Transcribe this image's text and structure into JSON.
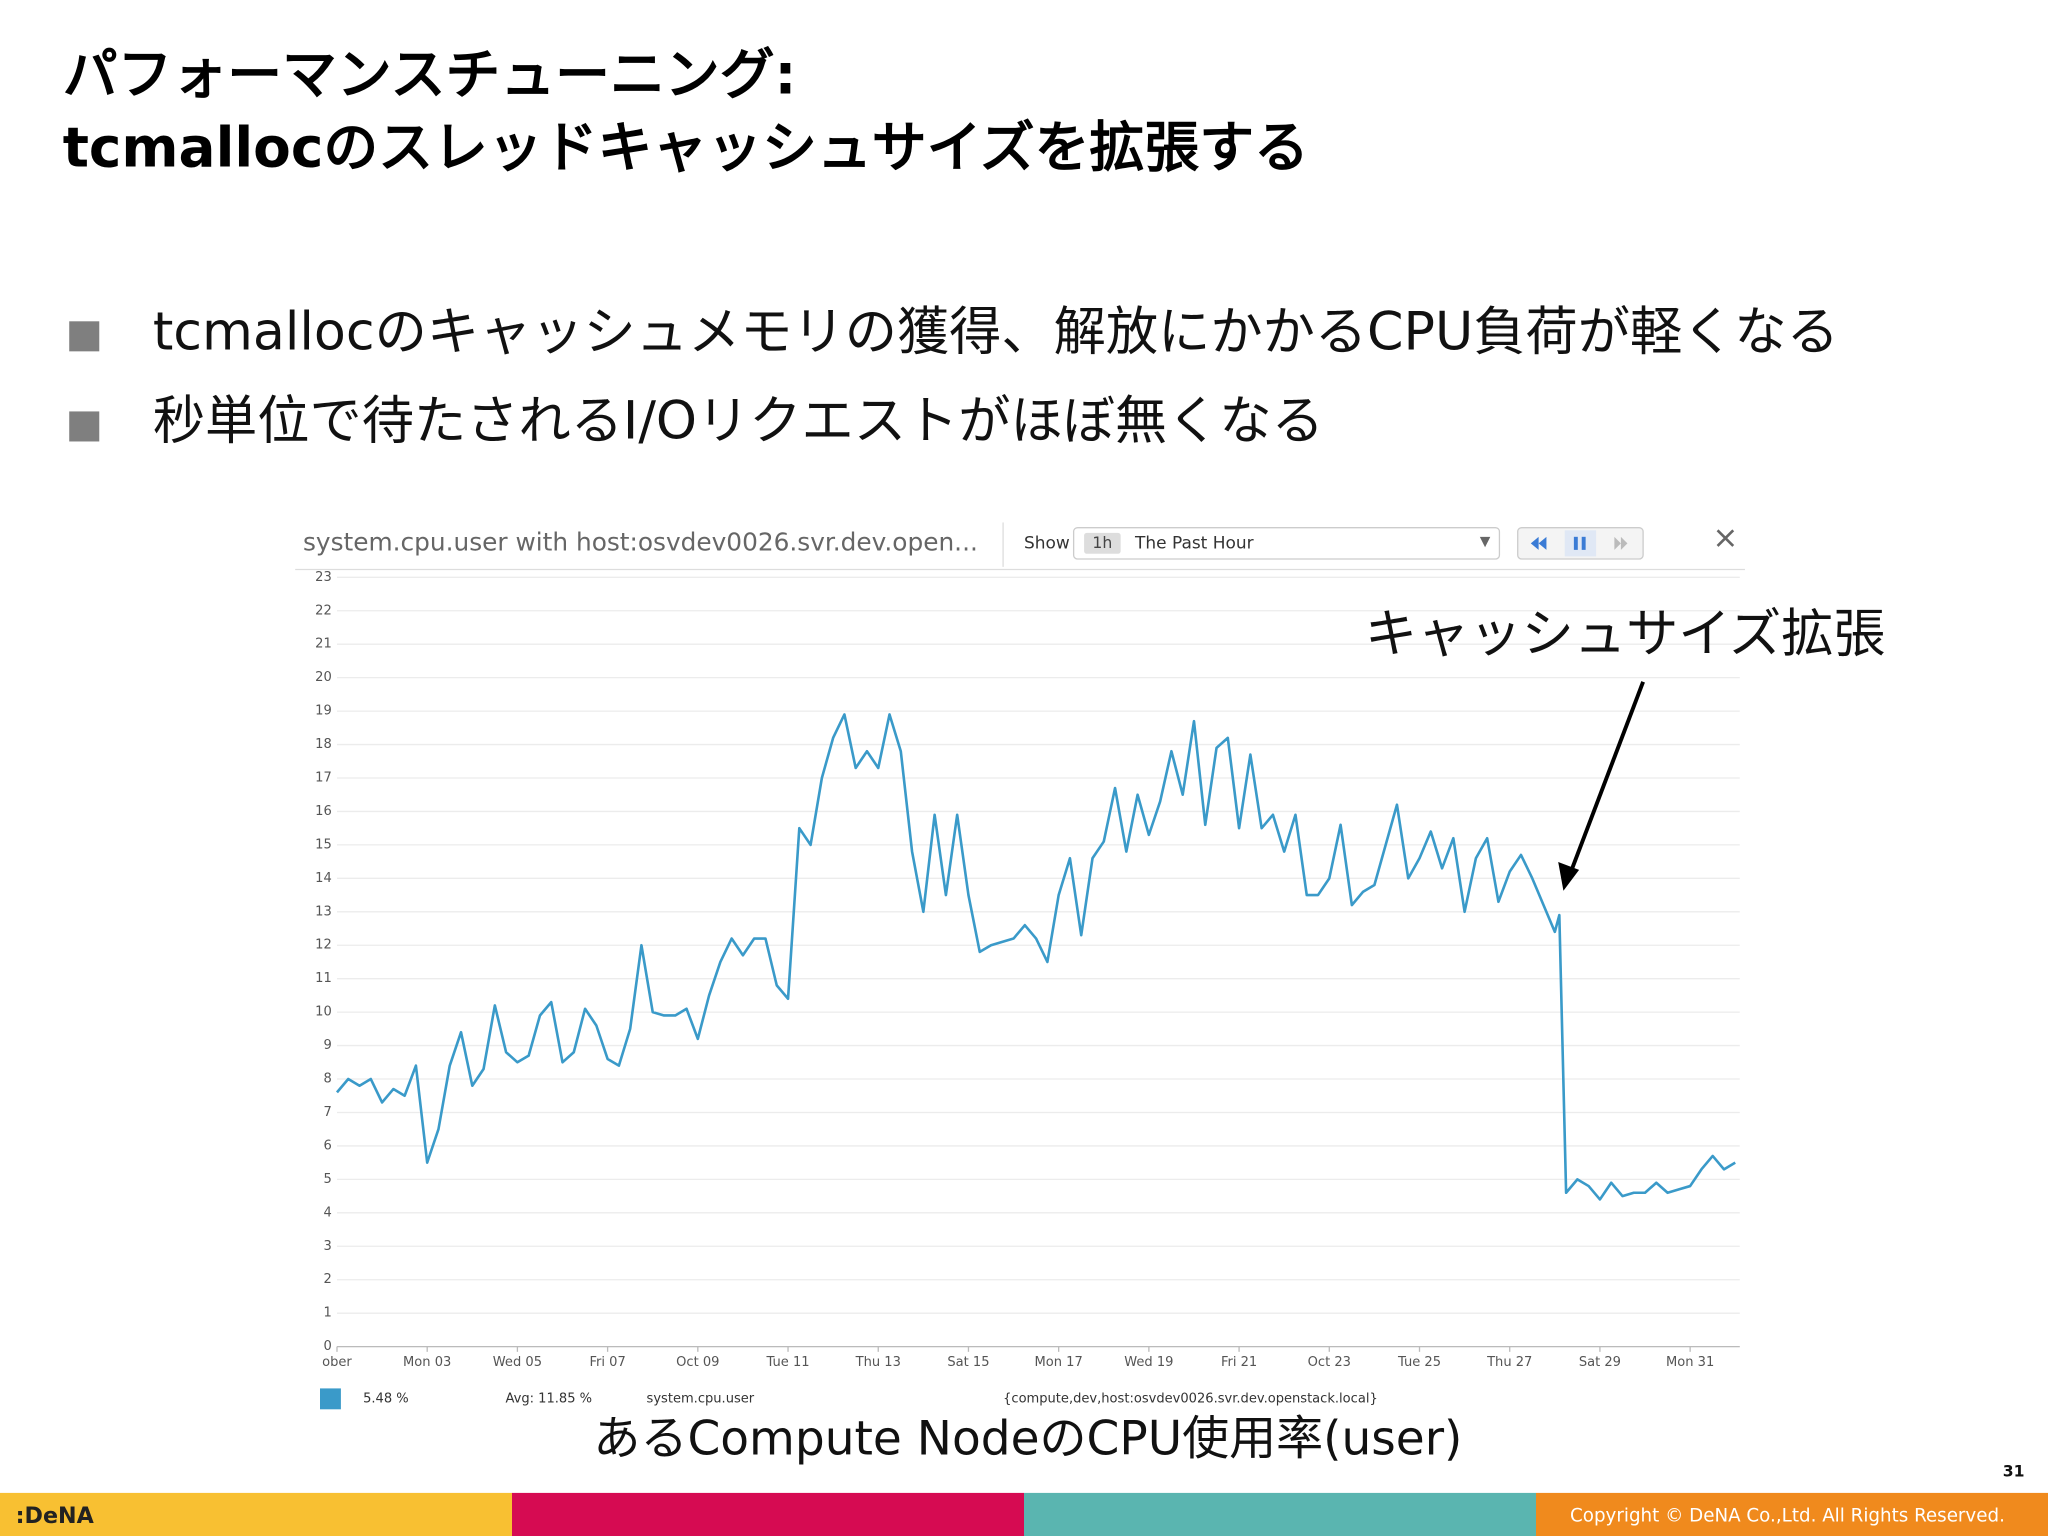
{
  "slide": {
    "title": [
      "パフォーマンスチューニング:",
      "tcmallocのスレッドキャッシュサイズを拡張する"
    ],
    "bullets": [
      "tcmallocのキャッシュメモリの獲得、解放にかかるCPU負荷が軽くなる",
      "秒単位で待たされるI/Oリクエストがほぼ無くなる"
    ],
    "annotation": "キャッシュサイズ拡張",
    "caption": "あるCompute NodeのCPU使用率(user)",
    "page_number": "31",
    "footer": {
      "logo": ":DeNA",
      "copyright": "Copyright © DeNA Co.,Ltd. All Rights Reserved."
    }
  },
  "chart_data": {
    "type": "line",
    "title": "system.cpu.user with host:osvdev0026.svr.dev.open...",
    "controls": {
      "show_label": "Show",
      "range_short": "1h",
      "range": "The Past Hour"
    },
    "x": [
      1.0,
      1.25,
      1.5,
      1.75,
      2.0,
      2.25,
      2.5,
      2.75,
      3.0,
      3.25,
      3.5,
      3.75,
      4.0,
      4.25,
      4.5,
      4.75,
      5.0,
      5.25,
      5.5,
      5.75,
      6.0,
      6.25,
      6.5,
      6.75,
      7.0,
      7.25,
      7.5,
      7.75,
      8.0,
      8.25,
      8.5,
      8.75,
      9.0,
      9.25,
      9.5,
      9.75,
      10.0,
      10.25,
      10.5,
      10.75,
      11.0,
      11.25,
      11.5,
      11.75,
      12.0,
      12.25,
      12.5,
      12.75,
      13.0,
      13.25,
      13.5,
      13.75,
      14.0,
      14.25,
      14.5,
      14.75,
      15.0,
      15.25,
      15.5,
      15.75,
      16.0,
      16.25,
      16.5,
      16.75,
      17.0,
      17.25,
      17.5,
      17.75,
      18.0,
      18.25,
      18.5,
      18.75,
      19.0,
      19.25,
      19.5,
      19.75,
      20.0,
      20.25,
      20.5,
      20.75,
      21.0,
      21.25,
      21.5,
      21.75,
      22.0,
      22.25,
      22.5,
      22.75,
      23.0,
      23.25,
      23.5,
      23.75,
      24.0,
      24.25,
      24.5,
      24.75,
      25.0,
      25.25,
      25.5,
      25.75,
      26.0,
      26.25,
      26.5,
      26.75,
      27.0,
      27.25,
      27.5,
      27.75,
      28.0,
      28.1,
      28.25,
      28.5,
      28.75,
      29.0,
      29.25,
      29.5,
      29.75,
      30.0,
      30.25,
      30.5,
      30.75,
      31.0,
      31.25,
      31.5,
      31.75,
      32.0
    ],
    "series": [
      {
        "name": "system.cpu.user",
        "color": "#3a9ac9",
        "values": [
          7.6,
          8.0,
          7.8,
          8.0,
          7.3,
          7.7,
          7.5,
          8.4,
          5.5,
          6.5,
          8.4,
          9.4,
          7.8,
          8.3,
          10.2,
          8.8,
          8.5,
          8.7,
          9.9,
          10.3,
          8.5,
          8.8,
          10.1,
          9.6,
          8.6,
          8.4,
          9.5,
          12.0,
          10.0,
          9.9,
          9.9,
          10.1,
          9.2,
          10.5,
          11.5,
          12.2,
          11.7,
          12.2,
          12.2,
          10.8,
          10.4,
          15.5,
          15.0,
          17.0,
          18.2,
          18.9,
          17.3,
          17.8,
          17.3,
          18.9,
          17.8,
          14.8,
          13.0,
          15.9,
          13.5,
          15.9,
          13.5,
          11.8,
          12.0,
          12.1,
          12.2,
          12.6,
          12.2,
          11.5,
          13.5,
          14.6,
          12.3,
          14.6,
          15.1,
          16.7,
          14.8,
          16.5,
          15.3,
          16.3,
          17.8,
          16.5,
          18.7,
          15.6,
          17.9,
          18.2,
          15.5,
          17.7,
          15.5,
          15.9,
          14.8,
          15.9,
          13.5,
          13.5,
          14.0,
          15.6,
          13.2,
          13.6,
          13.8,
          15.0,
          16.2,
          14.0,
          14.6,
          15.4,
          14.3,
          15.2,
          13.0,
          14.6,
          15.2,
          13.3,
          14.2,
          14.7,
          14.0,
          13.2,
          12.4,
          12.9,
          4.6,
          5.0,
          4.8,
          4.4,
          4.9,
          4.5,
          4.6,
          4.6,
          4.9,
          4.6,
          4.7,
          4.8,
          5.3,
          5.7,
          5.3,
          5.5
        ]
      }
    ],
    "xlim": [
      1,
      32.1
    ],
    "xticks": [
      {
        "value": 1,
        "label": "ober"
      },
      {
        "value": 3,
        "label": "Mon 03"
      },
      {
        "value": 5,
        "label": "Wed 05"
      },
      {
        "value": 7,
        "label": "Fri 07"
      },
      {
        "value": 9,
        "label": "Oct 09"
      },
      {
        "value": 11,
        "label": "Tue 11"
      },
      {
        "value": 13,
        "label": "Thu 13"
      },
      {
        "value": 15,
        "label": "Sat 15"
      },
      {
        "value": 17,
        "label": "Mon 17"
      },
      {
        "value": 19,
        "label": "Wed 19"
      },
      {
        "value": 21,
        "label": "Fri 21"
      },
      {
        "value": 23,
        "label": "Oct 23"
      },
      {
        "value": 25,
        "label": "Tue 25"
      },
      {
        "value": 27,
        "label": "Thu 27"
      },
      {
        "value": 29,
        "label": "Sat 29"
      },
      {
        "value": 31,
        "label": "Mon 31"
      }
    ],
    "ylim": [
      0,
      23
    ],
    "yticks": [
      0,
      1,
      2,
      3,
      4,
      5,
      6,
      7,
      8,
      9,
      10,
      11,
      12,
      13,
      14,
      15,
      16,
      17,
      18,
      19,
      20,
      21,
      22,
      23
    ],
    "grid": true,
    "legend": {
      "current": "5.48 %",
      "avg": "Avg: 11.85 %",
      "scope": "{compute,dev,host:osvdev0026.svr.dev.openstack.local}"
    }
  }
}
